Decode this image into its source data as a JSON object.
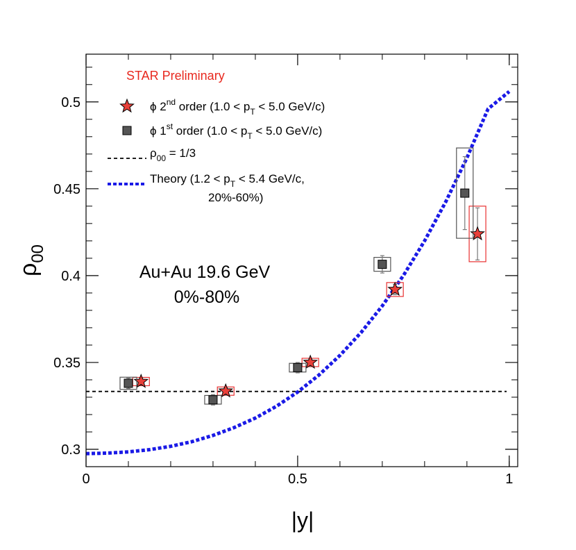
{
  "chart_data": {
    "type": "scatter",
    "xlabel": "|y|",
    "ylabel": "ρ00",
    "xlim": [
      0,
      1.02
    ],
    "ylim": [
      0.29,
      0.5275
    ],
    "xticks": [
      {
        "v": 0,
        "label": "0"
      },
      {
        "v": 0.5,
        "label": "0.5"
      },
      {
        "v": 1,
        "label": "1"
      }
    ],
    "yticks": [
      {
        "v": 0.3,
        "label": "0.3"
      },
      {
        "v": 0.35,
        "label": "0.35"
      },
      {
        "v": 0.4,
        "label": "0.4"
      },
      {
        "v": 0.45,
        "label": "0.45"
      },
      {
        "v": 0.5,
        "label": "0.5"
      }
    ],
    "preliminary_label": "STAR Preliminary",
    "annotation": {
      "line1": "Au+Au 19.6 GeV",
      "line2": "0%-80%"
    },
    "reference_value": 0.3333,
    "series": [
      {
        "name": "phi 2nd order (1.0 < pT < 5.0 GeV/c)",
        "marker": "star",
        "color": "#e8403a",
        "syscolor": "#e83030",
        "points": [
          {
            "x": 0.13,
            "y": 0.339,
            "stat": 0.002,
            "sys": 0.002
          },
          {
            "x": 0.33,
            "y": 0.3335,
            "stat": 0.002,
            "sys": 0.002
          },
          {
            "x": 0.53,
            "y": 0.35,
            "stat": 0.002,
            "sys": 0.002
          },
          {
            "x": 0.73,
            "y": 0.392,
            "stat": 0.003,
            "sys": 0.004
          },
          {
            "x": 0.925,
            "y": 0.424,
            "stat": 0.015,
            "sys": 0.016
          }
        ]
      },
      {
        "name": "phi 1st order (1.0 < pT < 5.0 GeV/c)",
        "marker": "square",
        "color": "#555555",
        "syscolor": "#555555",
        "points": [
          {
            "x": 0.1,
            "y": 0.338,
            "stat": 0.003,
            "sys": 0.0035
          },
          {
            "x": 0.3,
            "y": 0.3285,
            "stat": 0.003,
            "sys": 0.0025
          },
          {
            "x": 0.5,
            "y": 0.347,
            "stat": 0.003,
            "sys": 0.0025
          },
          {
            "x": 0.7,
            "y": 0.4065,
            "stat": 0.005,
            "sys": 0.004
          },
          {
            "x": 0.895,
            "y": 0.4475,
            "stat": 0.021,
            "sys": 0.026
          }
        ]
      }
    ],
    "theory": {
      "name": "Theory (1.2 < pT < 5.4 GeV/c, 20%-60%)",
      "color": "#1a1ae6",
      "x": [
        0,
        0.05,
        0.1,
        0.15,
        0.2,
        0.25,
        0.3,
        0.35,
        0.4,
        0.45,
        0.5,
        0.55,
        0.6,
        0.65,
        0.7,
        0.75,
        0.8,
        0.85,
        0.9,
        0.95,
        1.0
      ],
      "y": [
        0.2975,
        0.2978,
        0.2985,
        0.2998,
        0.3017,
        0.3044,
        0.308,
        0.3125,
        0.318,
        0.3248,
        0.333,
        0.3427,
        0.3541,
        0.3673,
        0.3826,
        0.4001,
        0.42,
        0.4425,
        0.4678,
        0.496,
        0.506
      ]
    },
    "legend": [
      {
        "key": "star",
        "text": "ϕ 2",
        "sup": "nd",
        "rest": " order (1.0 < p",
        "sub": "T",
        "end": " < 5.0 GeV/c)"
      },
      {
        "key": "square",
        "text": "ϕ 1",
        "sup": "st",
        "rest": " order (1.0 < p",
        "sub": "T",
        "end": " < 5.0 GeV/c)"
      },
      {
        "key": "ref",
        "text": "ρ",
        "sub": "00",
        "end": " = 1/3"
      },
      {
        "key": "theory",
        "text": "Theory (1.2 < p",
        "sub": "T",
        "end": " < 5.4 GeV/c,",
        "line2": "20%-60%)"
      }
    ]
  }
}
